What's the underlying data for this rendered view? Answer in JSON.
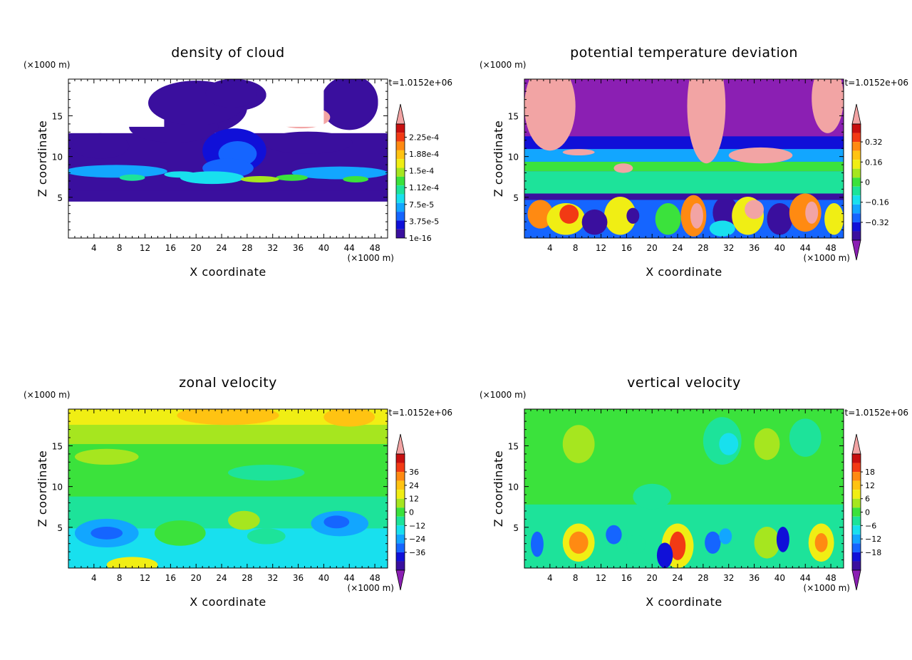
{
  "palette": [
    "#8b1fb3",
    "#3a0f9e",
    "#1010d8",
    "#1565ff",
    "#12a6ff",
    "#18e0ee",
    "#1de39a",
    "#3be23c",
    "#a6e61f",
    "#f0ee14",
    "#ffc312",
    "#ff8a12",
    "#f23a14",
    "#c80f0f",
    "#f2a4a4"
  ],
  "chart_data": [
    {
      "type": "heatmap",
      "title": "density of cloud",
      "xlabel": "X coordinate",
      "ylabel": "Z coordinate",
      "x_unit": "(×1000 m)",
      "y_unit": "(×1000 m)",
      "time_label": "t=1.0152e+06",
      "xlim": [
        0,
        50
      ],
      "ylim": [
        0,
        19.5
      ],
      "x_ticks": [
        4,
        8,
        12,
        16,
        20,
        24,
        28,
        32,
        36,
        40,
        44,
        48
      ],
      "y_ticks": [
        5,
        10,
        15
      ],
      "colorbar_labels": [
        "2.25e-4",
        "1.88e-4",
        "1.5e-4",
        "1.12e-4",
        "7.5e-5",
        "3.75e-5",
        "1e-16"
      ],
      "colorbar_has_lower_arrow": false
    },
    {
      "type": "heatmap",
      "title": "potential temperature deviation",
      "xlabel": "X coordinate",
      "ylabel": "Z coordinate",
      "x_unit": "(×1000 m)",
      "y_unit": "(×1000 m)",
      "time_label": "t=1.0152e+06",
      "xlim": [
        0,
        50
      ],
      "ylim": [
        0,
        19.5
      ],
      "x_ticks": [
        4,
        8,
        12,
        16,
        20,
        24,
        28,
        32,
        36,
        40,
        44,
        48
      ],
      "y_ticks": [
        5,
        10,
        15
      ],
      "colorbar_labels": [
        "0.32",
        "0.16",
        "0",
        "−0.16",
        "−0.32"
      ],
      "colorbar_has_lower_arrow": true
    },
    {
      "type": "heatmap",
      "title": "zonal velocity",
      "xlabel": "X coordinate",
      "ylabel": "Z coordinate",
      "x_unit": "(×1000 m)",
      "y_unit": "(×1000 m)",
      "time_label": "t=1.0152e+06",
      "xlim": [
        0,
        50
      ],
      "ylim": [
        0,
        19.5
      ],
      "x_ticks": [
        4,
        8,
        12,
        16,
        20,
        24,
        28,
        32,
        36,
        40,
        44,
        48
      ],
      "y_ticks": [
        5,
        10,
        15
      ],
      "colorbar_labels": [
        "36",
        "24",
        "12",
        "0",
        "−12",
        "−24",
        "−36"
      ],
      "colorbar_has_lower_arrow": true
    },
    {
      "type": "heatmap",
      "title": "vertical velocity",
      "xlabel": "X coordinate",
      "ylabel": "Z coordinate",
      "x_unit": "(×1000 m)",
      "y_unit": "(×1000 m)",
      "time_label": "t=1.0152e+06",
      "xlim": [
        0,
        50
      ],
      "ylim": [
        0,
        19.5
      ],
      "x_ticks": [
        4,
        8,
        12,
        16,
        20,
        24,
        28,
        32,
        36,
        40,
        44,
        48
      ],
      "y_ticks": [
        5,
        10,
        15
      ],
      "colorbar_labels": [
        "18",
        "12",
        "6",
        "0",
        "−6",
        "−12",
        "−18"
      ],
      "colorbar_has_lower_arrow": true
    }
  ]
}
